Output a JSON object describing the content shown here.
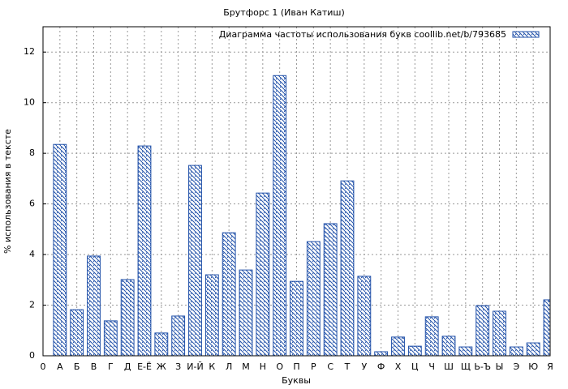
{
  "chart_data": {
    "type": "bar",
    "title": "Брутфорс 1 (Иван Катиш)",
    "x_label": "Буквы",
    "y_label": "% использования в тексте",
    "categories": [
      "0",
      "А",
      "Б",
      "В",
      "Г",
      "Д",
      "Е-Ё",
      "Ж",
      "З",
      "И-Й",
      "К",
      "Л",
      "М",
      "Н",
      "О",
      "П",
      "Р",
      "С",
      "Т",
      "У",
      "Ф",
      "Х",
      "Ц",
      "Ч",
      "Ш",
      "Щ",
      "Ь-Ъ",
      "Ы",
      "Э",
      "Ю",
      "Я"
    ],
    "series": [
      {
        "name": "Диаграмма частоты использования букв coollib.net/b/793685",
        "color": "#1f4fa8",
        "values": [
          null,
          8.35,
          1.82,
          3.94,
          1.38,
          3.01,
          8.29,
          0.9,
          1.57,
          7.52,
          3.2,
          4.86,
          3.39,
          6.43,
          11.07,
          2.94,
          4.51,
          5.22,
          6.91,
          3.14,
          0.16,
          0.74,
          0.38,
          1.54,
          0.77,
          0.35,
          1.98,
          1.76,
          0.35,
          0.51,
          2.21
        ]
      }
    ],
    "ylim": [
      0,
      13
    ],
    "yticks": [
      0,
      2,
      4,
      6,
      8,
      10,
      12
    ],
    "grid": true,
    "legend": "top-right"
  }
}
